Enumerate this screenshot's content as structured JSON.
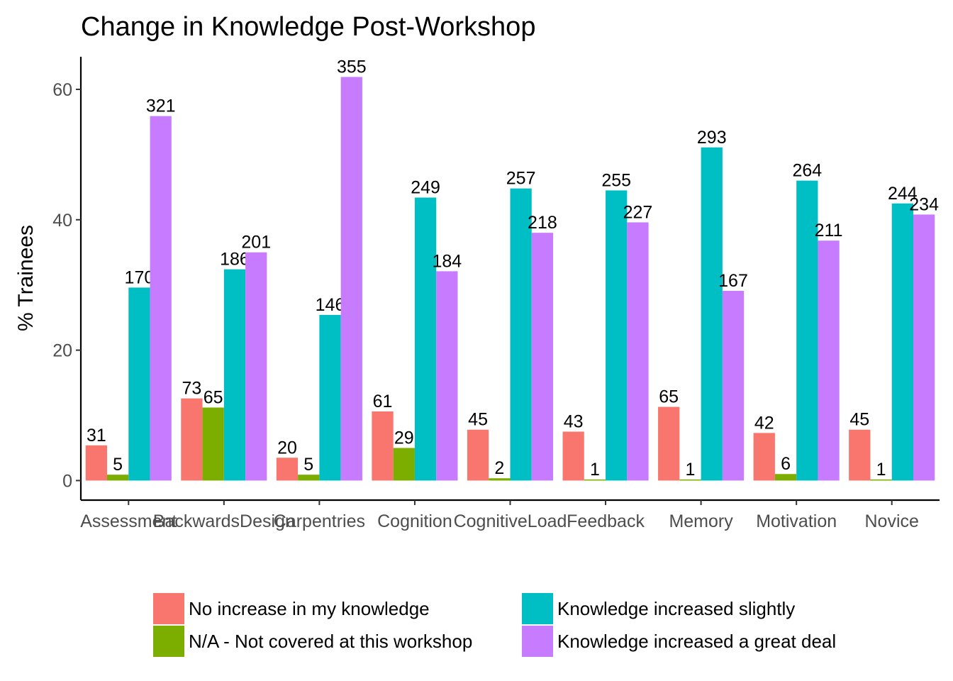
{
  "chart_data": {
    "type": "bar",
    "title": "Change in Knowledge Post-Workshop",
    "xlabel": "",
    "ylabel": "% Trainees",
    "ylim": [
      -3,
      65
    ],
    "yticks": [
      0,
      20,
      40,
      60
    ],
    "categories": [
      "Assessment",
      "BackwardsDesign",
      "Carpentries",
      "Cognition",
      "CognitiveLoad",
      "Feedback",
      "Memory",
      "Motivation",
      "Novice"
    ],
    "series": [
      {
        "name": "No increase in my knowledge",
        "color": "#F8766D",
        "values": [
          5.4,
          12.6,
          3.5,
          10.6,
          7.8,
          7.5,
          11.3,
          7.3,
          7.8
        ],
        "counts": [
          "31",
          "73",
          "20",
          "61",
          "45",
          "43",
          "65",
          "42",
          "45"
        ]
      },
      {
        "name": "N/A - Not covered at this workshop",
        "color": "#7CAE00",
        "values": [
          0.9,
          11.2,
          0.9,
          5.0,
          0.35,
          0.17,
          0.17,
          1.0,
          0.17
        ],
        "counts": [
          "5",
          "65",
          "5",
          "29",
          "2",
          "1",
          "1",
          "6",
          "1"
        ]
      },
      {
        "name": "Knowledge increased slightly",
        "color": "#00BFC4",
        "values": [
          29.6,
          32.4,
          25.4,
          43.4,
          44.8,
          44.5,
          51.1,
          46.0,
          42.5
        ],
        "counts": [
          "170",
          "186",
          "146",
          "249",
          "257",
          "255",
          "293",
          "264",
          "244"
        ]
      },
      {
        "name": "Knowledge increased a great deal",
        "color": "#C77CFF",
        "values": [
          55.9,
          35.0,
          61.9,
          32.1,
          38.0,
          39.6,
          29.1,
          36.8,
          40.8
        ],
        "counts": [
          "321",
          "201",
          "355",
          "184",
          "218",
          "227",
          "167",
          "211",
          "234"
        ]
      }
    ],
    "grid": false,
    "legend_position": "bottom"
  }
}
